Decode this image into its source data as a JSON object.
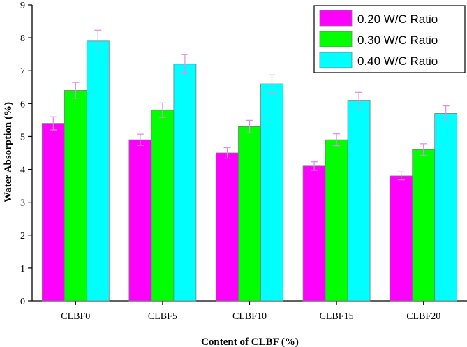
{
  "chart_data": {
    "type": "bar",
    "title": "",
    "xlabel": "Content of CLBF (%)",
    "ylabel": "Water Absorption (%)",
    "ylim": [
      0,
      9
    ],
    "yticks": [
      "0",
      "1",
      "2",
      "3",
      "4",
      "5",
      "6",
      "7",
      "8",
      "9"
    ],
    "categories": [
      "CLBF0",
      "CLBF5",
      "CLBF10",
      "CLBF15",
      "CLBF20"
    ],
    "legend_position": "top-right",
    "series": [
      {
        "name": "0.20 W/C Ratio",
        "color": "#ff00ff",
        "values": [
          5.4,
          4.9,
          4.5,
          4.1,
          3.8
        ],
        "errors": [
          0.2,
          0.17,
          0.16,
          0.13,
          0.12
        ]
      },
      {
        "name": "0.30 W/C Ratio",
        "color": "#00ff00",
        "values": [
          6.4,
          5.8,
          5.3,
          4.9,
          4.6
        ],
        "errors": [
          0.24,
          0.22,
          0.19,
          0.18,
          0.18
        ]
      },
      {
        "name": "0.40 W/C Ratio",
        "color": "#00ffff",
        "values": [
          7.9,
          7.2,
          6.6,
          6.1,
          5.7
        ],
        "errors": [
          0.33,
          0.29,
          0.27,
          0.24,
          0.23
        ]
      }
    ],
    "error_bar_color": "#e58ae5",
    "bar_edge_color": "#7a7a7a"
  }
}
